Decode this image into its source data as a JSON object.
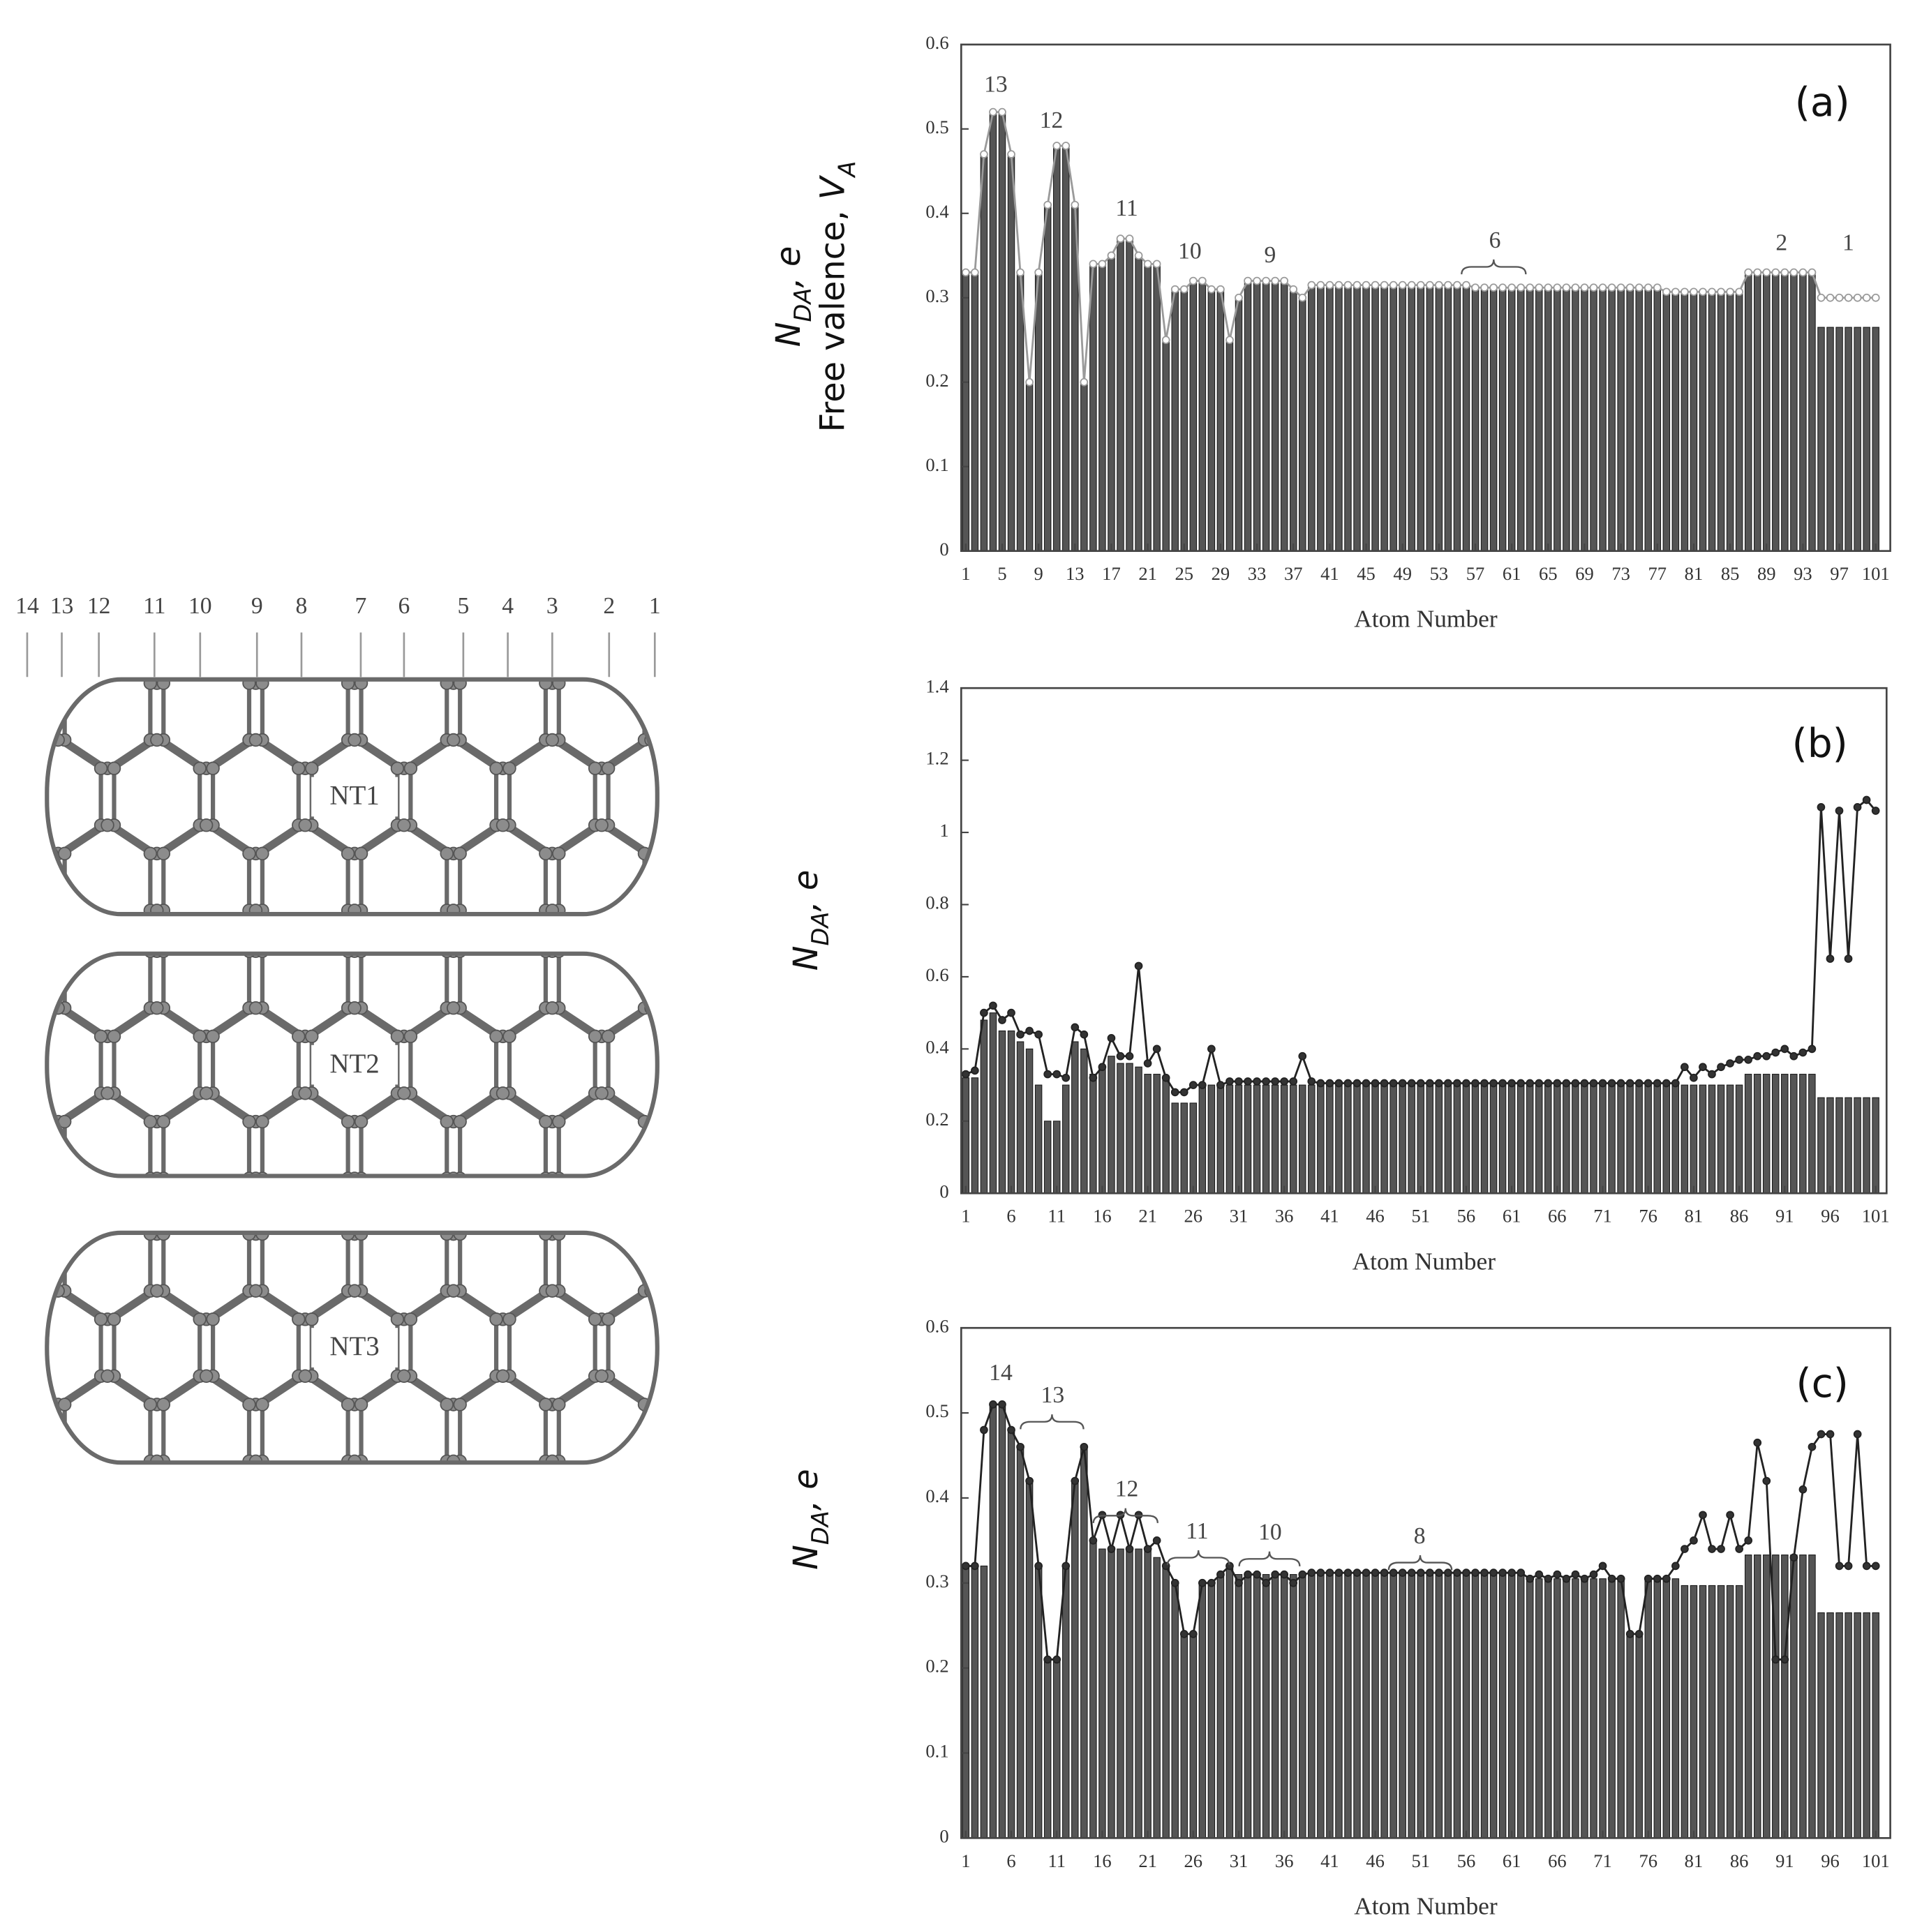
{
  "diagram": {
    "position_labels": [
      "14",
      "13",
      "12",
      "11",
      "10",
      "9",
      "8",
      "7",
      "6",
      "5",
      "4",
      "3",
      "2",
      "1"
    ],
    "tubes": [
      "NT1",
      "NT2",
      "NT3"
    ]
  },
  "chart_data": [
    {
      "type": "bar",
      "panel": "(a)",
      "xlabel": "Atom Number",
      "ylabel": [
        {
          "text": "N",
          "style": "italic"
        },
        {
          "text": "DA",
          "style": "sub"
        },
        {
          "text": ", e",
          "style": "italic"
        }
      ],
      "ylabel2": [
        {
          "text": "Free valence, ",
          "style": "normal"
        },
        {
          "text": "V",
          "style": "italic"
        },
        {
          "text": "A",
          "style": "sub"
        }
      ],
      "annotations": [
        "13",
        "12",
        "11",
        "10",
        "9",
        "6",
        "2",
        "1"
      ],
      "xlim": [
        0.5,
        102.6
      ],
      "xticks": [
        1,
        5,
        9,
        13,
        17,
        21,
        25,
        29,
        33,
        37,
        41,
        45,
        49,
        53,
        57,
        61,
        65,
        69,
        73,
        77,
        81,
        85,
        89,
        93,
        97,
        101
      ],
      "ylim": [
        0,
        0.6
      ],
      "yticks": [
        0,
        0.1,
        0.2,
        0.3,
        0.4,
        0.5,
        0.6
      ],
      "x": [
        1,
        2,
        3,
        4,
        5,
        6,
        7,
        8,
        9,
        10,
        11,
        12,
        13,
        14,
        15,
        16,
        17,
        18,
        19,
        20,
        21,
        22,
        23,
        24,
        25,
        26,
        27,
        28,
        29,
        30,
        31,
        32,
        33,
        34,
        35,
        36,
        37,
        38,
        39,
        40,
        41,
        42,
        43,
        44,
        45,
        46,
        47,
        48,
        49,
        50,
        51,
        52,
        53,
        54,
        55,
        56,
        57,
        58,
        59,
        60,
        61,
        62,
        63,
        64,
        65,
        66,
        67,
        68,
        69,
        70,
        71,
        72,
        73,
        74,
        75,
        76,
        77,
        78,
        79,
        80,
        81,
        82,
        83,
        84,
        85,
        86,
        87,
        88,
        89,
        90,
        91,
        92,
        93,
        94,
        95,
        96,
        97,
        98,
        99,
        100,
        101
      ],
      "series": [
        {
          "kind": "bar",
          "color": "#555555",
          "values": [
            0.33,
            0.33,
            0.47,
            0.52,
            0.52,
            0.47,
            0.33,
            0.2,
            0.33,
            0.41,
            0.48,
            0.48,
            0.41,
            0.2,
            0.34,
            0.34,
            0.35,
            0.37,
            0.37,
            0.35,
            0.34,
            0.34,
            0.25,
            0.31,
            0.31,
            0.32,
            0.32,
            0.31,
            0.31,
            0.25,
            0.3,
            0.32,
            0.32,
            0.32,
            0.32,
            0.32,
            0.31,
            0.3,
            0.315,
            0.315,
            0.315,
            0.315,
            0.315,
            0.315,
            0.315,
            0.315,
            0.315,
            0.315,
            0.315,
            0.315,
            0.315,
            0.315,
            0.315,
            0.315,
            0.315,
            0.315,
            0.312,
            0.312,
            0.312,
            0.312,
            0.312,
            0.312,
            0.312,
            0.312,
            0.312,
            0.312,
            0.312,
            0.312,
            0.312,
            0.312,
            0.312,
            0.312,
            0.312,
            0.312,
            0.312,
            0.312,
            0.312,
            0.307,
            0.307,
            0.307,
            0.307,
            0.307,
            0.307,
            0.307,
            0.307,
            0.307,
            0.33,
            0.33,
            0.33,
            0.33,
            0.33,
            0.33,
            0.33,
            0.33,
            0.265,
            0.265,
            0.265,
            0.265,
            0.265,
            0.265,
            0.265
          ]
        },
        {
          "kind": "line",
          "color": "#9a9a9a",
          "marker_fill": "#ffffff",
          "values": [
            0.33,
            0.33,
            0.47,
            0.52,
            0.52,
            0.47,
            0.33,
            0.2,
            0.33,
            0.41,
            0.48,
            0.48,
            0.41,
            0.2,
            0.34,
            0.34,
            0.35,
            0.37,
            0.37,
            0.35,
            0.34,
            0.34,
            0.25,
            0.31,
            0.31,
            0.32,
            0.32,
            0.31,
            0.31,
            0.25,
            0.3,
            0.32,
            0.32,
            0.32,
            0.32,
            0.32,
            0.31,
            0.3,
            0.315,
            0.315,
            0.315,
            0.315,
            0.315,
            0.315,
            0.315,
            0.315,
            0.315,
            0.315,
            0.315,
            0.315,
            0.315,
            0.315,
            0.315,
            0.315,
            0.315,
            0.315,
            0.312,
            0.312,
            0.312,
            0.312,
            0.312,
            0.312,
            0.312,
            0.312,
            0.312,
            0.312,
            0.312,
            0.312,
            0.312,
            0.312,
            0.312,
            0.312,
            0.312,
            0.312,
            0.312,
            0.312,
            0.312,
            0.307,
            0.307,
            0.307,
            0.307,
            0.307,
            0.307,
            0.307,
            0.307,
            0.307,
            0.33,
            0.33,
            0.33,
            0.33,
            0.33,
            0.33,
            0.33,
            0.33,
            0.3,
            0.3,
            0.3,
            0.3,
            0.3,
            0.3,
            0.3
          ]
        }
      ]
    },
    {
      "type": "bar",
      "panel": "(b)",
      "xlabel": "Atom Number",
      "ylabel": [
        {
          "text": "N",
          "style": "italic"
        },
        {
          "text": "DA",
          "style": "sub"
        },
        {
          "text": ", e",
          "style": "italic"
        }
      ],
      "xlim": [
        0.5,
        102.2
      ],
      "xticks": [
        1,
        6,
        11,
        16,
        21,
        26,
        31,
        36,
        41,
        46,
        51,
        56,
        61,
        66,
        71,
        76,
        81,
        86,
        91,
        96,
        101
      ],
      "ylim": [
        0,
        1.4
      ],
      "yticks": [
        0,
        0.2,
        0.4,
        0.6,
        0.8,
        1,
        1.2,
        1.4
      ],
      "x": [
        1,
        2,
        3,
        4,
        5,
        6,
        7,
        8,
        9,
        10,
        11,
        12,
        13,
        14,
        15,
        16,
        17,
        18,
        19,
        20,
        21,
        22,
        23,
        24,
        25,
        26,
        27,
        28,
        29,
        30,
        31,
        32,
        33,
        34,
        35,
        36,
        37,
        38,
        39,
        40,
        41,
        42,
        43,
        44,
        45,
        46,
        47,
        48,
        49,
        50,
        51,
        52,
        53,
        54,
        55,
        56,
        57,
        58,
        59,
        60,
        61,
        62,
        63,
        64,
        65,
        66,
        67,
        68,
        69,
        70,
        71,
        72,
        73,
        74,
        75,
        76,
        77,
        78,
        79,
        80,
        81,
        82,
        83,
        84,
        85,
        86,
        87,
        88,
        89,
        90,
        91,
        92,
        93,
        94,
        95,
        96,
        97,
        98,
        99,
        100,
        101
      ],
      "series": [
        {
          "kind": "bar",
          "color": "#555555",
          "values": [
            0.32,
            0.32,
            0.48,
            0.5,
            0.45,
            0.45,
            0.42,
            0.4,
            0.3,
            0.2,
            0.2,
            0.3,
            0.42,
            0.4,
            0.33,
            0.35,
            0.38,
            0.36,
            0.36,
            0.35,
            0.33,
            0.33,
            0.32,
            0.25,
            0.25,
            0.25,
            0.3,
            0.3,
            0.3,
            0.3,
            0.3,
            0.3,
            0.3,
            0.3,
            0.3,
            0.3,
            0.3,
            0.3,
            0.3,
            0.3,
            0.3,
            0.3,
            0.3,
            0.3,
            0.3,
            0.3,
            0.3,
            0.3,
            0.3,
            0.3,
            0.3,
            0.3,
            0.3,
            0.3,
            0.3,
            0.3,
            0.3,
            0.3,
            0.3,
            0.3,
            0.3,
            0.3,
            0.3,
            0.3,
            0.3,
            0.3,
            0.3,
            0.3,
            0.3,
            0.3,
            0.3,
            0.3,
            0.3,
            0.3,
            0.3,
            0.3,
            0.3,
            0.3,
            0.3,
            0.3,
            0.3,
            0.3,
            0.3,
            0.3,
            0.3,
            0.3,
            0.33,
            0.33,
            0.33,
            0.33,
            0.33,
            0.33,
            0.33,
            0.33,
            0.265,
            0.265,
            0.265,
            0.265,
            0.265,
            0.265,
            0.265
          ]
        },
        {
          "kind": "line",
          "color": "#222222",
          "marker_fill": "#333333",
          "values": [
            0.33,
            0.34,
            0.5,
            0.52,
            0.48,
            0.5,
            0.44,
            0.45,
            0.44,
            0.33,
            0.33,
            0.32,
            0.46,
            0.44,
            0.32,
            0.35,
            0.43,
            0.38,
            0.38,
            0.63,
            0.36,
            0.4,
            0.32,
            0.28,
            0.28,
            0.3,
            0.3,
            0.4,
            0.3,
            0.31,
            0.31,
            0.31,
            0.31,
            0.31,
            0.31,
            0.31,
            0.31,
            0.38,
            0.31,
            0.305,
            0.305,
            0.305,
            0.305,
            0.305,
            0.305,
            0.305,
            0.305,
            0.305,
            0.305,
            0.305,
            0.305,
            0.305,
            0.305,
            0.305,
            0.305,
            0.305,
            0.305,
            0.305,
            0.305,
            0.305,
            0.305,
            0.305,
            0.305,
            0.305,
            0.305,
            0.305,
            0.305,
            0.305,
            0.305,
            0.305,
            0.305,
            0.305,
            0.305,
            0.305,
            0.305,
            0.305,
            0.305,
            0.305,
            0.305,
            0.35,
            0.32,
            0.35,
            0.33,
            0.35,
            0.36,
            0.37,
            0.37,
            0.38,
            0.38,
            0.39,
            0.4,
            0.38,
            0.39,
            0.4,
            1.07,
            0.65,
            1.06,
            0.65,
            1.07,
            1.09,
            1.06
          ]
        }
      ]
    },
    {
      "type": "bar",
      "panel": "(c)",
      "xlabel": "Atom Number",
      "ylabel": [
        {
          "text": "N",
          "style": "italic"
        },
        {
          "text": "DA",
          "style": "sub"
        },
        {
          "text": ", e",
          "style": "italic"
        }
      ],
      "annotations": [
        "14",
        "13",
        "12",
        "11",
        "10",
        "8"
      ],
      "xlim": [
        0.5,
        102.6
      ],
      "xticks": [
        1,
        6,
        11,
        16,
        21,
        26,
        31,
        36,
        41,
        46,
        51,
        56,
        61,
        66,
        71,
        76,
        81,
        86,
        91,
        96,
        101
      ],
      "ylim": [
        0,
        0.6
      ],
      "yticks": [
        0,
        0.1,
        0.2,
        0.3,
        0.4,
        0.5,
        0.6
      ],
      "x": [
        1,
        2,
        3,
        4,
        5,
        6,
        7,
        8,
        9,
        10,
        11,
        12,
        13,
        14,
        15,
        16,
        17,
        18,
        19,
        20,
        21,
        22,
        23,
        24,
        25,
        26,
        27,
        28,
        29,
        30,
        31,
        32,
        33,
        34,
        35,
        36,
        37,
        38,
        39,
        40,
        41,
        42,
        43,
        44,
        45,
        46,
        47,
        48,
        49,
        50,
        51,
        52,
        53,
        54,
        55,
        56,
        57,
        58,
        59,
        60,
        61,
        62,
        63,
        64,
        65,
        66,
        67,
        68,
        69,
        70,
        71,
        72,
        73,
        74,
        75,
        76,
        77,
        78,
        79,
        80,
        81,
        82,
        83,
        84,
        85,
        86,
        87,
        88,
        89,
        90,
        91,
        92,
        93,
        94,
        95,
        96,
        97,
        98,
        99,
        100,
        101
      ],
      "series": [
        {
          "kind": "bar",
          "color": "#555555",
          "values": [
            0.32,
            0.32,
            0.32,
            0.51,
            0.51,
            0.48,
            0.46,
            0.42,
            0.32,
            0.21,
            0.21,
            0.32,
            0.42,
            0.46,
            0.35,
            0.34,
            0.34,
            0.34,
            0.34,
            0.34,
            0.34,
            0.33,
            0.32,
            0.3,
            0.24,
            0.24,
            0.3,
            0.3,
            0.31,
            0.32,
            0.31,
            0.31,
            0.31,
            0.31,
            0.31,
            0.31,
            0.31,
            0.31,
            0.312,
            0.312,
            0.312,
            0.312,
            0.312,
            0.312,
            0.312,
            0.312,
            0.312,
            0.312,
            0.312,
            0.312,
            0.312,
            0.312,
            0.312,
            0.312,
            0.312,
            0.312,
            0.312,
            0.312,
            0.312,
            0.312,
            0.312,
            0.312,
            0.305,
            0.305,
            0.305,
            0.305,
            0.305,
            0.305,
            0.305,
            0.305,
            0.305,
            0.305,
            0.305,
            0.24,
            0.24,
            0.305,
            0.305,
            0.305,
            0.305,
            0.297,
            0.297,
            0.297,
            0.297,
            0.297,
            0.297,
            0.297,
            0.333,
            0.333,
            0.333,
            0.333,
            0.333,
            0.333,
            0.333,
            0.333,
            0.265,
            0.265,
            0.265,
            0.265,
            0.265,
            0.265,
            0.265
          ]
        },
        {
          "kind": "line",
          "color": "#222222",
          "marker_fill": "#333333",
          "values": [
            0.32,
            0.32,
            0.48,
            0.51,
            0.51,
            0.48,
            0.46,
            0.42,
            0.32,
            0.21,
            0.21,
            0.32,
            0.42,
            0.46,
            0.35,
            0.38,
            0.34,
            0.38,
            0.34,
            0.38,
            0.34,
            0.35,
            0.32,
            0.3,
            0.24,
            0.24,
            0.3,
            0.3,
            0.31,
            0.32,
            0.3,
            0.31,
            0.31,
            0.3,
            0.31,
            0.31,
            0.3,
            0.31,
            0.312,
            0.312,
            0.312,
            0.312,
            0.312,
            0.312,
            0.312,
            0.312,
            0.312,
            0.312,
            0.312,
            0.312,
            0.312,
            0.312,
            0.312,
            0.312,
            0.312,
            0.312,
            0.312,
            0.312,
            0.312,
            0.312,
            0.312,
            0.312,
            0.305,
            0.31,
            0.305,
            0.31,
            0.305,
            0.31,
            0.305,
            0.31,
            0.32,
            0.305,
            0.305,
            0.24,
            0.24,
            0.305,
            0.305,
            0.305,
            0.32,
            0.34,
            0.35,
            0.38,
            0.34,
            0.34,
            0.38,
            0.34,
            0.35,
            0.465,
            0.42,
            0.21,
            0.21,
            0.33,
            0.41,
            0.46,
            0.475,
            0.475,
            0.32,
            0.32,
            0.475,
            0.32,
            0.32
          ]
        }
      ]
    }
  ]
}
